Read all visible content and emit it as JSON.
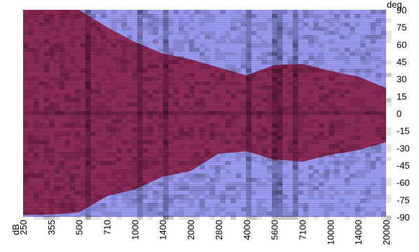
{
  "chart_data": {
    "type": "heatmap",
    "title": "",
    "xlabel": "",
    "ylabel": "",
    "x_unit_label": "dB",
    "y_unit_label": "deg.",
    "x_ticks": [
      "250",
      "355",
      "500",
      "710",
      "1000",
      "1400",
      "2000",
      "2800",
      "4000",
      "5600",
      "7100",
      "10000",
      "14000",
      "20000"
    ],
    "y_ticks": [
      "90",
      "75",
      "60",
      "45",
      "30",
      "15",
      "0",
      "-15",
      "-30",
      "-45",
      "-60",
      "-75",
      "-90"
    ],
    "ylim": [
      -90,
      90
    ],
    "colors": {
      "inside": "#8c2a58",
      "outside": "#9a9af2",
      "inside_dark": "#4a1030",
      "outside_dark": "#2a2a70"
    },
    "boundary_deg": [
      {
        "x": "250",
        "upper": 92,
        "lower": -88
      },
      {
        "x": "355",
        "upper": 92,
        "lower": -88
      },
      {
        "x": "500",
        "upper": 90,
        "lower": -86
      },
      {
        "x": "710",
        "upper": 75,
        "lower": -72
      },
      {
        "x": "1000",
        "upper": 62,
        "lower": -66
      },
      {
        "x": "1400",
        "upper": 52,
        "lower": -55
      },
      {
        "x": "2000",
        "upper": 47,
        "lower": -50
      },
      {
        "x": "2800",
        "upper": 40,
        "lower": -35
      },
      {
        "x": "4000",
        "upper": 33,
        "lower": -33
      },
      {
        "x": "5600",
        "upper": 42,
        "lower": -40
      },
      {
        "x": "7100",
        "upper": 43,
        "lower": -42
      },
      {
        "x": "10000",
        "upper": 37,
        "lower": -36
      },
      {
        "x": "14000",
        "upper": 32,
        "lower": -32
      },
      {
        "x": "20000",
        "upper": 22,
        "lower": -25
      }
    ]
  }
}
